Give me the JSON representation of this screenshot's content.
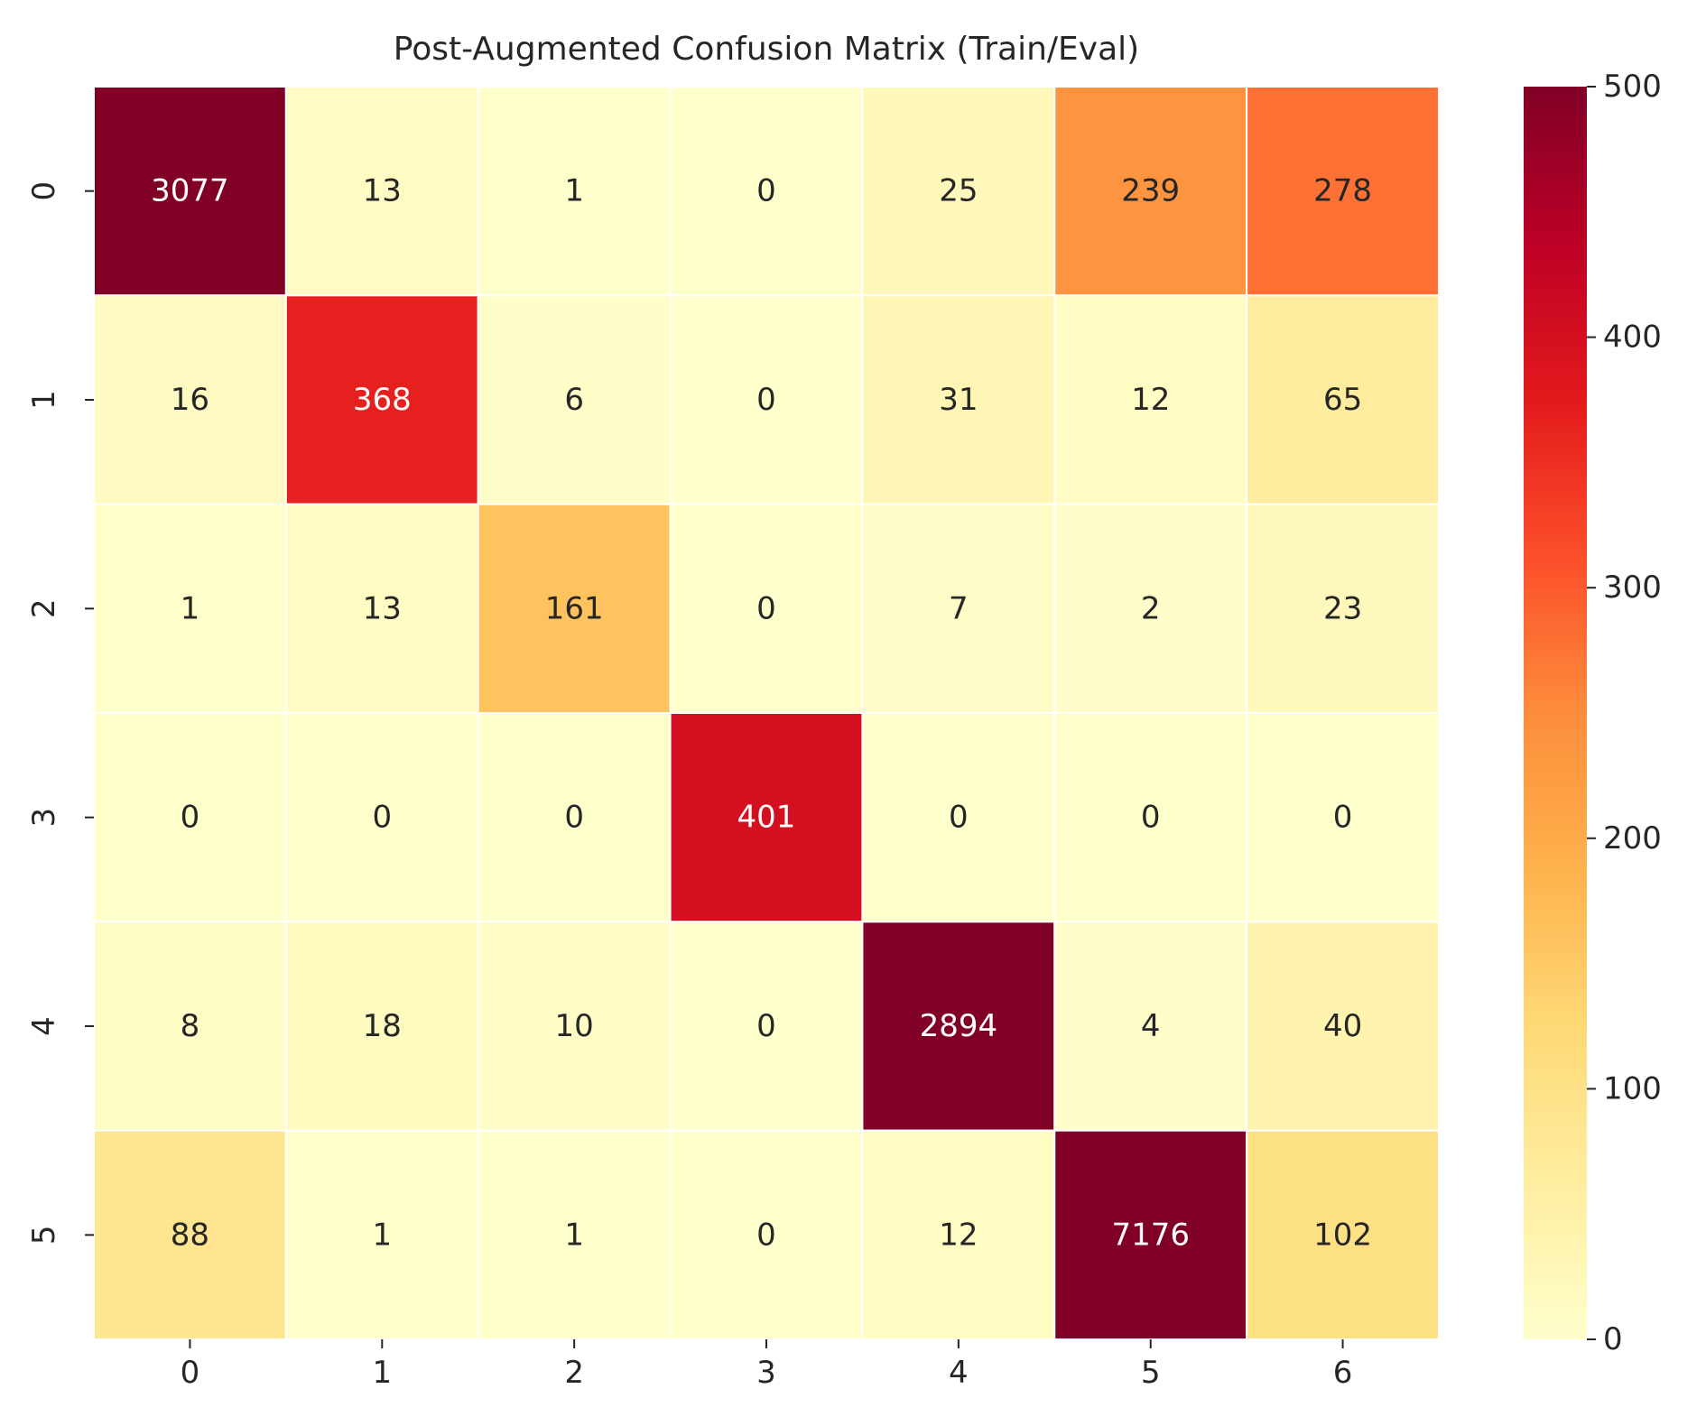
{
  "chart_data": {
    "type": "heatmap",
    "title": "Post-Augmented Confusion Matrix (Train/Eval)",
    "xlabel": "",
    "ylabel": "",
    "x_categories": [
      "0",
      "1",
      "2",
      "3",
      "4",
      "5",
      "6"
    ],
    "y_categories": [
      "0",
      "1",
      "2",
      "3",
      "4",
      "5"
    ],
    "values": [
      [
        3077,
        13,
        1,
        0,
        25,
        239,
        278
      ],
      [
        16,
        368,
        6,
        0,
        31,
        12,
        65
      ],
      [
        1,
        13,
        161,
        0,
        7,
        2,
        23
      ],
      [
        0,
        0,
        0,
        401,
        0,
        0,
        0
      ],
      [
        8,
        18,
        10,
        0,
        2894,
        4,
        40
      ],
      [
        88,
        1,
        1,
        0,
        12,
        7176,
        102
      ]
    ],
    "colorbar": {
      "range": [
        0,
        500
      ],
      "ticks": [
        0,
        100,
        200,
        300,
        400,
        500
      ],
      "colormap": "YlOrRd",
      "colormap_stops": [
        "#ffffcc",
        "#ffeda0",
        "#fed976",
        "#feb24c",
        "#fd8d3c",
        "#fc4e2a",
        "#e31a1c",
        "#bd0026",
        "#800026"
      ]
    },
    "cell_border_color": "#ffffff",
    "text_color_dark": "#262626",
    "text_color_light": "#ffffff"
  }
}
